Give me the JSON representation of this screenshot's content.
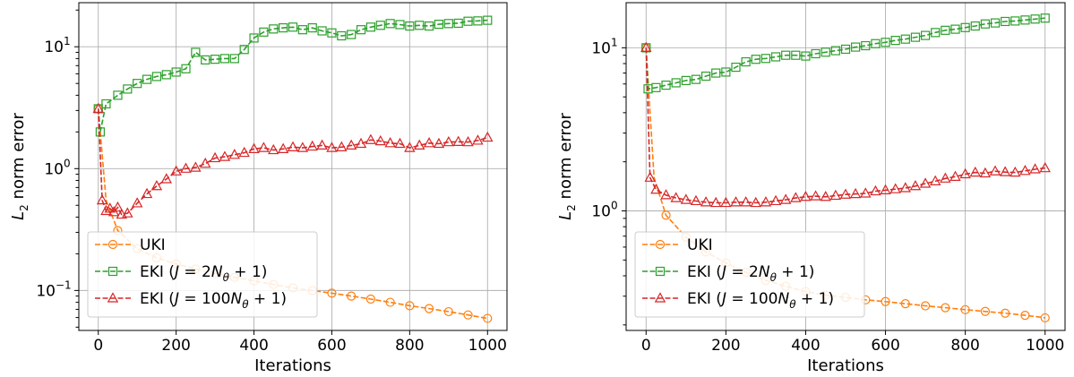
{
  "chart_data": [
    {
      "type": "line",
      "xlabel": "Iterations",
      "ylabel": "L2 norm error",
      "yscale": "log",
      "xlim": [
        -50,
        1050
      ],
      "ylim": [
        0.047,
        23
      ],
      "xticks": [
        0,
        200,
        400,
        600,
        800,
        1000
      ],
      "yticks": [
        {
          "value": 0.1,
          "base": "10",
          "exp": "−1"
        },
        {
          "value": 1,
          "base": "10",
          "exp": "0"
        },
        {
          "value": 10,
          "base": "10",
          "exp": "1"
        }
      ],
      "grid": true,
      "legend_position": "lower-left",
      "series": [
        {
          "name": "UKI",
          "color": "#ff7f0e",
          "marker": "circle",
          "x": [
            0,
            20,
            50,
            100,
            150,
            200,
            250,
            300,
            350,
            400,
            450,
            500,
            550,
            600,
            650,
            700,
            750,
            800,
            850,
            900,
            950,
            1000
          ],
          "y": [
            3.1,
            0.55,
            0.31,
            0.22,
            0.185,
            0.165,
            0.15,
            0.138,
            0.128,
            0.12,
            0.112,
            0.105,
            0.1,
            0.095,
            0.09,
            0.085,
            0.08,
            0.075,
            0.071,
            0.067,
            0.063,
            0.059
          ]
        },
        {
          "name": "EKI (J = 2Nθ + 1)",
          "color": "#2ca02c",
          "marker": "square",
          "x": [
            0,
            5,
            20,
            50,
            75,
            100,
            125,
            150,
            175,
            200,
            225,
            250,
            275,
            300,
            325,
            350,
            375,
            400,
            425,
            450,
            475,
            500,
            525,
            550,
            575,
            600,
            625,
            650,
            675,
            700,
            725,
            750,
            775,
            800,
            825,
            850,
            875,
            900,
            925,
            950,
            975,
            1000
          ],
          "y": [
            3.1,
            2.0,
            3.4,
            4.0,
            4.5,
            5.0,
            5.4,
            5.7,
            5.9,
            6.2,
            6.6,
            9.0,
            7.8,
            7.9,
            8.0,
            8.0,
            9.5,
            11.8,
            13.2,
            14.0,
            14.3,
            14.5,
            13.8,
            14.3,
            13.5,
            13.0,
            12.3,
            12.6,
            13.8,
            14.5,
            15.0,
            15.5,
            15.2,
            14.8,
            15.0,
            14.8,
            15.3,
            15.5,
            15.6,
            16.2,
            16.3,
            16.5
          ]
        },
        {
          "name": "EKI (J = 100Nθ + 1)",
          "color": "#d62728",
          "marker": "triangle",
          "x": [
            0,
            10,
            20,
            30,
            40,
            50,
            60,
            75,
            100,
            125,
            150,
            175,
            200,
            225,
            250,
            275,
            300,
            325,
            350,
            375,
            400,
            425,
            450,
            475,
            500,
            525,
            550,
            575,
            600,
            625,
            650,
            675,
            700,
            725,
            750,
            775,
            800,
            825,
            850,
            875,
            900,
            925,
            950,
            975,
            1000
          ],
          "y": [
            3.1,
            0.55,
            0.45,
            0.47,
            0.44,
            0.48,
            0.42,
            0.43,
            0.52,
            0.62,
            0.72,
            0.82,
            0.95,
            1.0,
            1.02,
            1.1,
            1.22,
            1.25,
            1.3,
            1.35,
            1.45,
            1.48,
            1.42,
            1.45,
            1.5,
            1.48,
            1.52,
            1.55,
            1.48,
            1.5,
            1.55,
            1.6,
            1.72,
            1.68,
            1.62,
            1.6,
            1.48,
            1.55,
            1.62,
            1.6,
            1.65,
            1.66,
            1.65,
            1.7,
            1.8
          ]
        }
      ]
    },
    {
      "type": "line",
      "xlabel": "Iterations",
      "ylabel": "L2 norm error",
      "yscale": "log",
      "xlim": [
        -50,
        1050
      ],
      "ylim": [
        0.185,
        18.9
      ],
      "xticks": [
        0,
        200,
        400,
        600,
        800,
        1000
      ],
      "yticks": [
        {
          "value": 1,
          "base": "10",
          "exp": "0"
        },
        {
          "value": 10,
          "base": "10",
          "exp": "1"
        }
      ],
      "grid": true,
      "legend_position": "lower-left",
      "series": [
        {
          "name": "UKI",
          "color": "#ff7f0e",
          "marker": "circle",
          "x": [
            0,
            20,
            50,
            100,
            150,
            200,
            250,
            300,
            350,
            400,
            450,
            500,
            550,
            600,
            650,
            700,
            750,
            800,
            850,
            900,
            950,
            1000
          ],
          "y": [
            10,
            1.6,
            0.94,
            0.69,
            0.56,
            0.48,
            0.42,
            0.375,
            0.345,
            0.32,
            0.305,
            0.295,
            0.285,
            0.278,
            0.27,
            0.262,
            0.255,
            0.248,
            0.242,
            0.236,
            0.229,
            0.221
          ]
        },
        {
          "name": "EKI (J = 2Nθ + 1)",
          "color": "#2ca02c",
          "marker": "square",
          "x": [
            0,
            5,
            25,
            50,
            75,
            100,
            125,
            150,
            175,
            200,
            225,
            250,
            275,
            300,
            325,
            350,
            375,
            400,
            425,
            450,
            475,
            500,
            525,
            550,
            575,
            600,
            625,
            650,
            675,
            700,
            725,
            750,
            775,
            800,
            825,
            850,
            875,
            900,
            925,
            950,
            975,
            1000
          ],
          "y": [
            10,
            5.6,
            5.7,
            5.9,
            6.1,
            6.3,
            6.4,
            6.7,
            7.0,
            7.1,
            7.6,
            8.2,
            8.5,
            8.6,
            8.8,
            9.0,
            9.0,
            8.9,
            9.2,
            9.4,
            9.6,
            9.8,
            10.1,
            10.3,
            10.6,
            10.8,
            11.1,
            11.3,
            11.6,
            11.9,
            12.4,
            12.8,
            13.0,
            13.3,
            13.6,
            14.0,
            14.2,
            14.5,
            14.6,
            14.8,
            15.0,
            15.2
          ]
        },
        {
          "name": "EKI (J = 100Nθ + 1)",
          "color": "#d62728",
          "marker": "triangle",
          "x": [
            0,
            10,
            25,
            50,
            75,
            100,
            125,
            150,
            175,
            200,
            225,
            250,
            275,
            300,
            325,
            350,
            375,
            400,
            425,
            450,
            475,
            500,
            525,
            550,
            575,
            600,
            625,
            650,
            675,
            700,
            725,
            750,
            775,
            800,
            825,
            850,
            875,
            900,
            925,
            950,
            975,
            1000
          ],
          "y": [
            10,
            1.6,
            1.35,
            1.25,
            1.2,
            1.17,
            1.15,
            1.13,
            1.12,
            1.12,
            1.13,
            1.13,
            1.12,
            1.13,
            1.15,
            1.17,
            1.2,
            1.22,
            1.23,
            1.22,
            1.24,
            1.26,
            1.27,
            1.28,
            1.32,
            1.34,
            1.36,
            1.38,
            1.42,
            1.47,
            1.52,
            1.58,
            1.62,
            1.68,
            1.72,
            1.7,
            1.75,
            1.73,
            1.72,
            1.76,
            1.8,
            1.83
          ]
        }
      ]
    }
  ]
}
